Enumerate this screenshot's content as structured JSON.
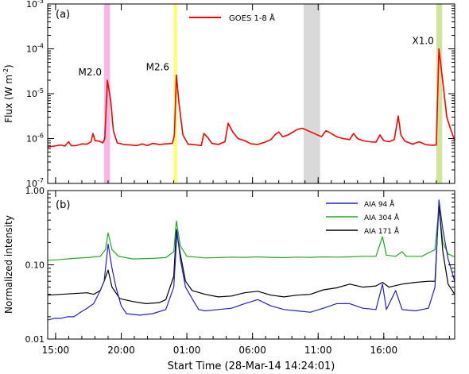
{
  "chart_data": [
    {
      "panel_label": "(a)",
      "type": "line",
      "ylabel_main": "Flux (W m",
      "ylabel_sup": "-2",
      "ylabel_close": ")",
      "yscale": "log",
      "ylim": [
        1e-07,
        0.001
      ],
      "ytick_labels": [
        {
          "value": 1e-07,
          "base": "10",
          "exp": "-7"
        },
        {
          "value": 1e-06,
          "base": "10",
          "exp": "-6"
        },
        {
          "value": 1e-05,
          "base": "10",
          "exp": "-5"
        },
        {
          "value": 0.0001,
          "base": "10",
          "exp": "-4"
        },
        {
          "value": 0.001,
          "base": "10",
          "exp": "-3"
        }
      ],
      "xlim_hours": [
        0,
        31.0
      ],
      "shaded_bands": [
        {
          "start": 4.3,
          "end": 4.75,
          "color": "#f7b7e4"
        },
        {
          "start": 9.6,
          "end": 9.85,
          "color": "#ffff66"
        },
        {
          "start": 19.5,
          "end": 20.75,
          "color": "#d9d9d9"
        },
        {
          "start": 29.6,
          "end": 30.05,
          "color": "#cfe69a"
        }
      ],
      "annotations": [
        {
          "text": "M2.0",
          "x": 4.6,
          "y": 2e-05
        },
        {
          "text": "M2.6",
          "x": 9.75,
          "y": 2.6e-05
        },
        {
          "text": "X1.0",
          "x": 29.9,
          "y": 0.0001
        }
      ],
      "series": [
        {
          "name": "GOES 1-8 Å",
          "color": "#ff0000",
          "points": [
            [
              0.0,
              6.5e-07
            ],
            [
              0.5,
              6.8e-07
            ],
            [
              1.0,
              7.2e-07
            ],
            [
              1.3,
              6.8e-07
            ],
            [
              1.6,
              8.5e-07
            ],
            [
              1.8,
              6.9e-07
            ],
            [
              2.2,
              7e-07
            ],
            [
              2.6,
              7.6e-07
            ],
            [
              3.0,
              7.5e-07
            ],
            [
              3.3,
              8.5e-07
            ],
            [
              3.45,
              1.3e-06
            ],
            [
              3.6,
              9e-07
            ],
            [
              3.9,
              8.8e-07
            ],
            [
              4.2,
              8e-07
            ],
            [
              4.35,
              1e-06
            ],
            [
              4.55,
              2e-05
            ],
            [
              4.8,
              7e-06
            ],
            [
              5.0,
              1.5e-06
            ],
            [
              5.3,
              8e-07
            ],
            [
              5.8,
              7.4e-07
            ],
            [
              6.3,
              7.2e-07
            ],
            [
              6.8,
              7e-07
            ],
            [
              7.2,
              7.6e-07
            ],
            [
              7.6,
              7e-07
            ],
            [
              8.0,
              7.8e-07
            ],
            [
              8.5,
              7.4e-07
            ],
            [
              9.0,
              7.6e-07
            ],
            [
              9.5,
              7.8e-07
            ],
            [
              9.65,
              1.2e-06
            ],
            [
              9.8,
              2.6e-05
            ],
            [
              10.0,
              6e-06
            ],
            [
              10.3,
              1.2e-06
            ],
            [
              10.7,
              7.5e-07
            ],
            [
              11.2,
              7.3e-07
            ],
            [
              11.7,
              7e-07
            ],
            [
              11.9,
              1.3e-06
            ],
            [
              12.2,
              1.05e-06
            ],
            [
              12.5,
              7.8e-07
            ],
            [
              13.0,
              7.4e-07
            ],
            [
              13.5,
              8.5e-07
            ],
            [
              13.75,
              2.2e-06
            ],
            [
              14.1,
              1.4e-06
            ],
            [
              14.5,
              1e-06
            ],
            [
              15.0,
              9e-07
            ],
            [
              15.5,
              7.6e-07
            ],
            [
              16.0,
              7.4e-07
            ],
            [
              16.5,
              8.2e-07
            ],
            [
              17.0,
              9.5e-07
            ],
            [
              17.3,
              1.2e-06
            ],
            [
              17.6,
              1.4e-06
            ],
            [
              17.9,
              1.1e-06
            ],
            [
              18.3,
              1.2e-06
            ],
            [
              18.7,
              1.4e-06
            ],
            [
              19.0,
              1.6e-06
            ],
            [
              19.4,
              1.7e-06
            ],
            [
              20.85,
              1.1e-06
            ],
            [
              21.2,
              1.5e-06
            ],
            [
              21.6,
              1.3e-06
            ],
            [
              22.0,
              1.1e-06
            ],
            [
              22.5,
              1e-06
            ],
            [
              23.0,
              9.5e-07
            ],
            [
              23.3,
              1.3e-06
            ],
            [
              23.6,
              1e-06
            ],
            [
              24.0,
              9e-07
            ],
            [
              24.5,
              8.5e-07
            ],
            [
              25.0,
              8.3e-07
            ],
            [
              25.3,
              1.2e-06
            ],
            [
              25.6,
              9e-07
            ],
            [
              26.0,
              8.5e-07
            ],
            [
              26.4,
              9.5e-07
            ],
            [
              26.7,
              3.2e-06
            ],
            [
              26.9,
              1.2e-06
            ],
            [
              27.2,
              8.8e-07
            ],
            [
              27.8,
              7.5e-07
            ],
            [
              28.3,
              8.5e-07
            ],
            [
              28.8,
              7.3e-07
            ],
            [
              29.3,
              7.1e-07
            ],
            [
              29.6,
              7.2e-07
            ],
            [
              29.8,
              0.0001
            ],
            [
              30.1,
              1.8e-05
            ],
            [
              30.4,
              3e-06
            ],
            [
              30.7,
              1.6e-06
            ],
            [
              31.0,
              9e-07
            ]
          ]
        }
      ]
    },
    {
      "panel_label": "(b)",
      "type": "line",
      "ylabel": "Normalized intensity",
      "yscale": "log",
      "ylim": [
        0.01,
        1.0
      ],
      "ytick_labels": [
        {
          "value": 0.01,
          "label": "0.01"
        },
        {
          "value": 0.1,
          "label": "0.10"
        },
        {
          "value": 1.0,
          "label": "1.00"
        }
      ],
      "xlabel": "Start Time (28-Mar-14 14:24:01)",
      "xlim_hours": [
        0,
        31.0
      ],
      "xticks": [
        {
          "hour": 0.6,
          "label": "15:00"
        },
        {
          "hour": 5.6,
          "label": "20:00"
        },
        {
          "hour": 10.6,
          "label": "01:00"
        },
        {
          "hour": 15.6,
          "label": "06:00"
        },
        {
          "hour": 20.6,
          "label": "11:00"
        },
        {
          "hour": 25.6,
          "label": "16:00"
        }
      ],
      "series": [
        {
          "name": "AIA 94 Å",
          "color": "#2222cc",
          "points": [
            [
              0.0,
              0.018
            ],
            [
              0.5,
              0.019
            ],
            [
              1.0,
              0.019
            ],
            [
              1.5,
              0.02
            ],
            [
              2.0,
              0.02
            ],
            [
              2.5,
              0.023
            ],
            [
              3.0,
              0.026
            ],
            [
              3.5,
              0.03
            ],
            [
              4.0,
              0.045
            ],
            [
              4.3,
              0.06
            ],
            [
              4.6,
              0.19
            ],
            [
              4.9,
              0.09
            ],
            [
              5.2,
              0.05
            ],
            [
              5.6,
              0.028
            ],
            [
              6.0,
              0.022
            ],
            [
              7.0,
              0.021
            ],
            [
              8.0,
              0.022
            ],
            [
              9.0,
              0.025
            ],
            [
              9.6,
              0.05
            ],
            [
              9.85,
              0.28
            ],
            [
              10.1,
              0.12
            ],
            [
              10.5,
              0.05
            ],
            [
              11.0,
              0.035
            ],
            [
              11.5,
              0.025
            ],
            [
              12.0,
              0.024
            ],
            [
              13.0,
              0.025
            ],
            [
              14.0,
              0.026
            ],
            [
              15.0,
              0.03
            ],
            [
              16.0,
              0.034
            ],
            [
              17.0,
              0.028
            ],
            [
              18.0,
              0.025
            ],
            [
              19.0,
              0.024
            ],
            [
              20.0,
              0.023
            ],
            [
              21.0,
              0.026
            ],
            [
              22.0,
              0.03
            ],
            [
              23.0,
              0.03
            ],
            [
              24.0,
              0.026
            ],
            [
              25.0,
              0.025
            ],
            [
              25.5,
              0.055
            ],
            [
              25.8,
              0.025
            ],
            [
              26.5,
              0.045
            ],
            [
              27.0,
              0.025
            ],
            [
              28.0,
              0.024
            ],
            [
              29.0,
              0.026
            ],
            [
              29.5,
              0.05
            ],
            [
              29.8,
              0.75
            ],
            [
              30.1,
              0.3
            ],
            [
              30.5,
              0.12
            ],
            [
              31.0,
              0.06
            ]
          ]
        },
        {
          "name": "AIA 304 Å",
          "color": "#22aa22",
          "points": [
            [
              0.0,
              0.115
            ],
            [
              1.0,
              0.118
            ],
            [
              2.0,
              0.122
            ],
            [
              3.0,
              0.125
            ],
            [
              4.0,
              0.13
            ],
            [
              4.4,
              0.16
            ],
            [
              4.6,
              0.27
            ],
            [
              4.9,
              0.16
            ],
            [
              5.4,
              0.13
            ],
            [
              6.5,
              0.12
            ],
            [
              8.0,
              0.122
            ],
            [
              9.0,
              0.125
            ],
            [
              9.6,
              0.15
            ],
            [
              9.8,
              0.39
            ],
            [
              10.1,
              0.18
            ],
            [
              10.6,
              0.13
            ],
            [
              12.0,
              0.124
            ],
            [
              13.0,
              0.125
            ],
            [
              14.0,
              0.127
            ],
            [
              15.0,
              0.126
            ],
            [
              16.0,
              0.128
            ],
            [
              17.0,
              0.126
            ],
            [
              18.0,
              0.125
            ],
            [
              19.0,
              0.127
            ],
            [
              20.0,
              0.126
            ],
            [
              21.0,
              0.128
            ],
            [
              22.0,
              0.127
            ],
            [
              23.0,
              0.128
            ],
            [
              24.0,
              0.13
            ],
            [
              25.0,
              0.13
            ],
            [
              25.5,
              0.24
            ],
            [
              25.8,
              0.135
            ],
            [
              26.5,
              0.13
            ],
            [
              27.0,
              0.15
            ],
            [
              27.3,
              0.13
            ],
            [
              28.5,
              0.13
            ],
            [
              29.5,
              0.16
            ],
            [
              29.8,
              0.6
            ],
            [
              30.1,
              0.2
            ],
            [
              30.5,
              0.14
            ],
            [
              31.0,
              0.128
            ]
          ]
        },
        {
          "name": "AIA 171 Å",
          "color": "#000000",
          "points": [
            [
              0.0,
              0.039
            ],
            [
              1.0,
              0.04
            ],
            [
              2.0,
              0.041
            ],
            [
              3.0,
              0.042
            ],
            [
              3.5,
              0.04
            ],
            [
              4.0,
              0.045
            ],
            [
              4.3,
              0.06
            ],
            [
              4.6,
              0.085
            ],
            [
              4.9,
              0.05
            ],
            [
              5.5,
              0.035
            ],
            [
              6.5,
              0.032
            ],
            [
              7.5,
              0.03
            ],
            [
              8.5,
              0.031
            ],
            [
              9.0,
              0.034
            ],
            [
              9.6,
              0.07
            ],
            [
              9.8,
              0.3
            ],
            [
              10.1,
              0.14
            ],
            [
              10.5,
              0.06
            ],
            [
              11.0,
              0.045
            ],
            [
              12.0,
              0.04
            ],
            [
              13.0,
              0.037
            ],
            [
              14.0,
              0.038
            ],
            [
              15.0,
              0.042
            ],
            [
              16.0,
              0.044
            ],
            [
              17.0,
              0.039
            ],
            [
              18.0,
              0.037
            ],
            [
              19.0,
              0.039
            ],
            [
              20.0,
              0.04
            ],
            [
              21.0,
              0.046
            ],
            [
              22.0,
              0.049
            ],
            [
              23.0,
              0.055
            ],
            [
              24.0,
              0.05
            ],
            [
              25.0,
              0.052
            ],
            [
              25.5,
              0.058
            ],
            [
              26.0,
              0.05
            ],
            [
              27.0,
              0.055
            ],
            [
              28.0,
              0.058
            ],
            [
              29.0,
              0.06
            ],
            [
              29.5,
              0.06
            ],
            [
              29.8,
              0.65
            ],
            [
              30.1,
              0.15
            ],
            [
              30.5,
              0.055
            ],
            [
              31.0,
              0.04
            ]
          ]
        }
      ]
    }
  ]
}
